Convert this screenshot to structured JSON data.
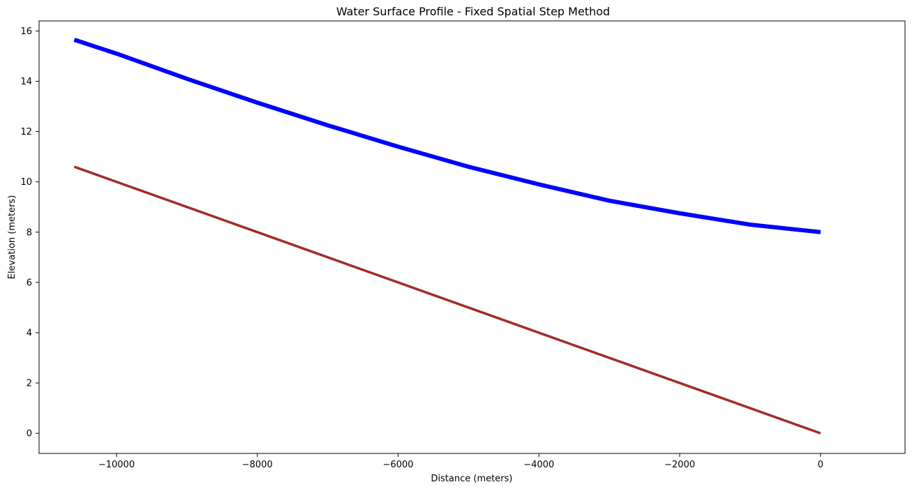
{
  "chart_data": {
    "type": "line",
    "title": "Water Surface Profile - Fixed Spatial Step Method",
    "xlabel": "Distance (meters)",
    "ylabel": "Elevation (meters)",
    "xlim": [
      -11100,
      1200
    ],
    "ylim": [
      -0.8,
      16.4
    ],
    "xticks": [
      -10000,
      -8000,
      -6000,
      -4000,
      -2000,
      0
    ],
    "xtick_labels": [
      "−10000",
      "−8000",
      "−6000",
      "−4000",
      "−2000",
      "0"
    ],
    "yticks": [
      0,
      2,
      4,
      6,
      8,
      10,
      12,
      14,
      16
    ],
    "ytick_labels": [
      "0",
      "2",
      "4",
      "6",
      "8",
      "10",
      "12",
      "14",
      "16"
    ],
    "grid": false,
    "series": [
      {
        "color": "#0000ff",
        "line_width": "thick",
        "x": [
          -10600,
          -10000,
          -9000,
          -8000,
          -7000,
          -6000,
          -5000,
          -4000,
          -3000,
          -2000,
          -1000,
          0
        ],
        "y": [
          15.65,
          15.1,
          14.1,
          13.15,
          12.25,
          11.4,
          10.6,
          9.9,
          9.25,
          8.75,
          8.3,
          8.0
        ]
      },
      {
        "color": "#a52a2a",
        "line_width": "medium",
        "x": [
          -10600,
          0
        ],
        "y": [
          10.6,
          0.0
        ]
      }
    ]
  }
}
